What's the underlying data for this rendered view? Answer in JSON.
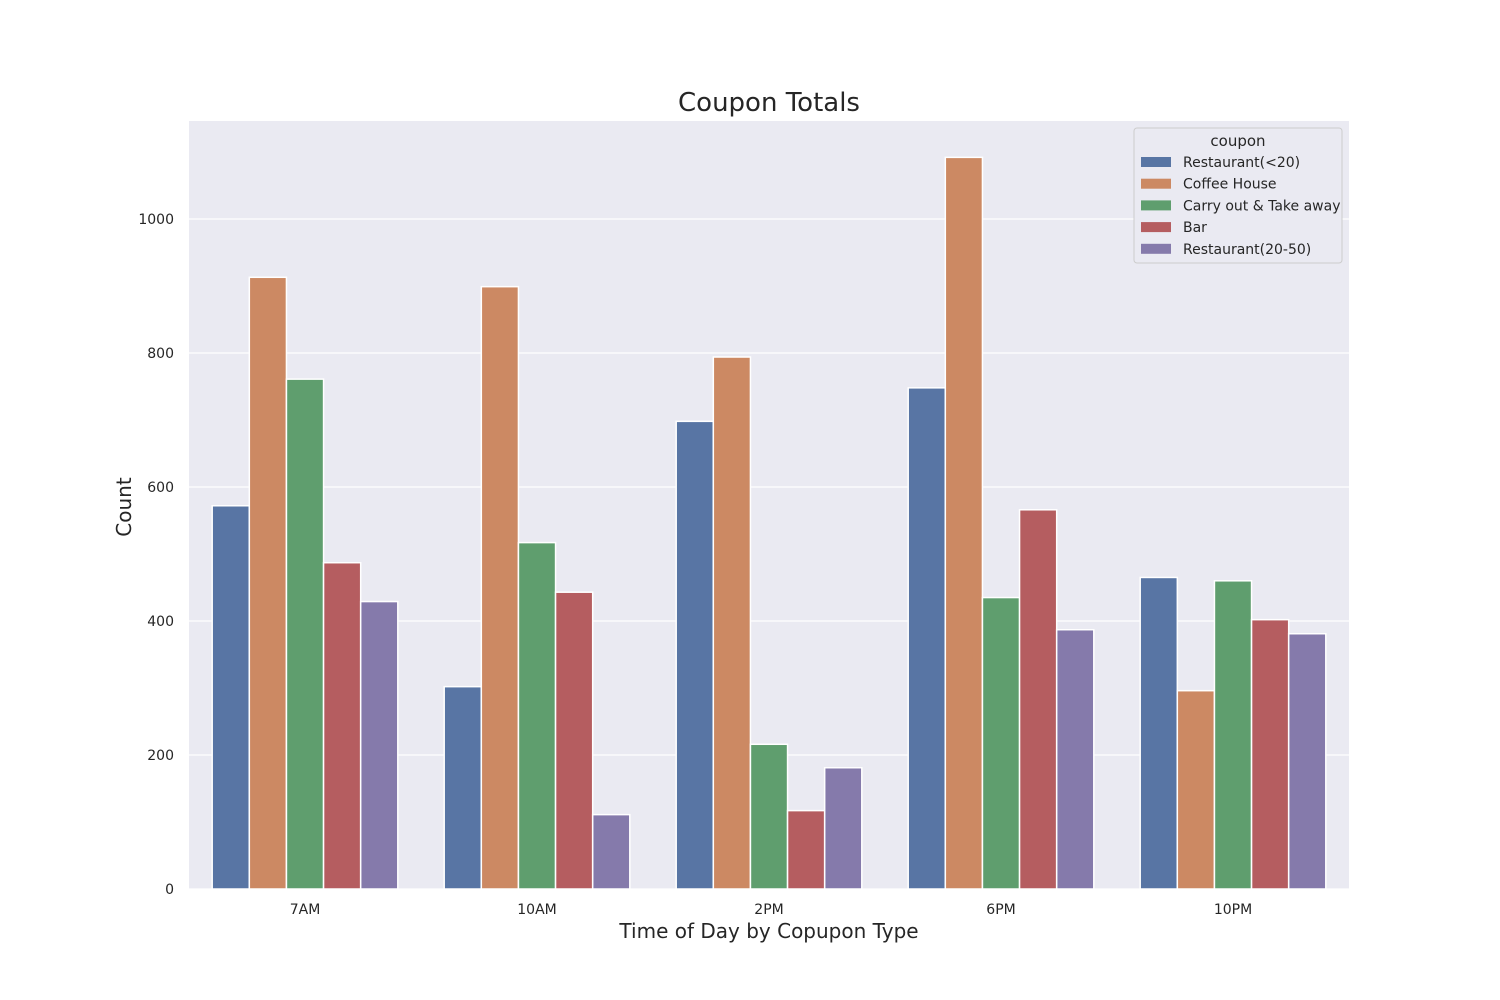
{
  "chart_data": {
    "type": "bar",
    "title": "Coupon Totals",
    "xlabel": "Time of Day by Copupon Type",
    "ylabel": "Count",
    "categories": [
      "7AM",
      "10AM",
      "2PM",
      "6PM",
      "10PM"
    ],
    "ylim": [
      0,
      1150
    ],
    "yticks": [
      0,
      200,
      400,
      600,
      800,
      1000
    ],
    "grid": true,
    "legend": {
      "title": "coupon",
      "placement": "top-right"
    },
    "series": [
      {
        "name": "Restaurant(<20)",
        "color": "#5875a4",
        "values": [
          572,
          302,
          698,
          748,
          465
        ]
      },
      {
        "name": "Coffee House",
        "color": "#cc8963",
        "values": [
          913,
          899,
          794,
          1092,
          296
        ]
      },
      {
        "name": "Carry out & Take away",
        "color": "#5f9e6e",
        "values": [
          761,
          517,
          216,
          435,
          460
        ]
      },
      {
        "name": "Bar",
        "color": "#b55d60",
        "values": [
          487,
          443,
          117,
          566,
          402
        ]
      },
      {
        "name": "Restaurant(20-50)",
        "color": "#857aab",
        "values": [
          429,
          111,
          181,
          387,
          381
        ]
      }
    ]
  }
}
